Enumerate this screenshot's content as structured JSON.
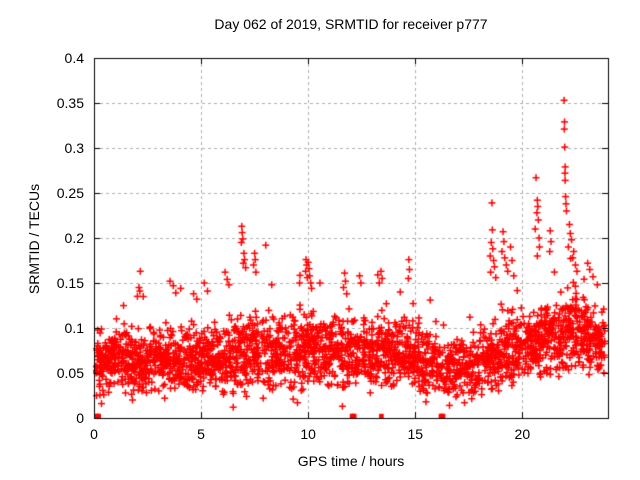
{
  "chart_data": {
    "type": "scatter",
    "title": "Day 062 of 2019, SRMTID for receiver p777",
    "xlabel": "GPS time / hours",
    "ylabel": "SRMTID / TECUs",
    "xlim": [
      0,
      24
    ],
    "ylim": [
      0,
      0.4
    ],
    "x_ticks": {
      "values": [
        0,
        5,
        10,
        15,
        20
      ],
      "labels": [
        "0",
        "5",
        "10",
        "15",
        "20"
      ]
    },
    "y_ticks": {
      "values": [
        0,
        0.05,
        0.1,
        0.15,
        0.2,
        0.25,
        0.3,
        0.35,
        0.4
      ],
      "labels": [
        "0",
        "0.05",
        "0.1",
        "0.15",
        "0.2",
        "0.25",
        "0.3",
        "0.35",
        "0.4"
      ]
    },
    "grid": true,
    "legend": false,
    "marker": {
      "shape": "plus",
      "color": "#ff0000",
      "size": 7
    },
    "frame_color": "#000000",
    "grid_color": "#b0b0b0",
    "background": "#ffffff",
    "prng_seed": 20190621,
    "distribution_bins": [
      [
        0,
        115,
        0.022,
        0.06,
        0.105
      ],
      [
        1,
        115,
        0.025,
        0.062,
        0.115
      ],
      [
        2,
        110,
        0.028,
        0.064,
        0.125
      ],
      [
        3,
        110,
        0.03,
        0.064,
        0.12
      ],
      [
        4,
        110,
        0.03,
        0.065,
        0.12
      ],
      [
        5,
        110,
        0.03,
        0.066,
        0.12
      ],
      [
        6,
        110,
        0.026,
        0.068,
        0.128
      ],
      [
        7,
        110,
        0.022,
        0.07,
        0.13
      ],
      [
        8,
        110,
        0.03,
        0.07,
        0.122
      ],
      [
        9,
        110,
        0.025,
        0.072,
        0.13
      ],
      [
        10,
        110,
        0.035,
        0.075,
        0.132
      ],
      [
        11,
        110,
        0.032,
        0.075,
        0.13
      ],
      [
        12,
        110,
        0.035,
        0.072,
        0.128
      ],
      [
        13,
        110,
        0.035,
        0.072,
        0.13
      ],
      [
        14,
        110,
        0.032,
        0.07,
        0.122
      ],
      [
        15,
        105,
        0.026,
        0.065,
        0.115
      ],
      [
        16,
        100,
        0.02,
        0.057,
        0.1
      ],
      [
        17,
        95,
        0.02,
        0.055,
        0.1
      ],
      [
        18,
        105,
        0.03,
        0.066,
        0.122
      ],
      [
        19,
        110,
        0.036,
        0.076,
        0.14
      ],
      [
        20,
        110,
        0.042,
        0.083,
        0.142
      ],
      [
        21,
        115,
        0.046,
        0.089,
        0.145
      ],
      [
        22,
        120,
        0.052,
        0.097,
        0.16
      ],
      [
        23,
        105,
        0.048,
        0.086,
        0.132
      ]
    ],
    "outliers": [
      [
        0.35,
        0.016
      ],
      [
        1.8,
        0.02
      ],
      [
        3.3,
        0.022
      ],
      [
        6.5,
        0.012
      ],
      [
        7.9,
        0.022
      ],
      [
        9.3,
        0.021
      ],
      [
        9.5,
        0.017
      ],
      [
        11.6,
        0.013
      ],
      [
        12.9,
        0.028
      ],
      [
        15.5,
        0.018
      ],
      [
        16.6,
        0.014
      ],
      [
        17.3,
        0.017
      ],
      [
        18.1,
        0.026
      ],
      [
        2.1,
        0.145
      ],
      [
        2.14,
        0.141
      ],
      [
        2.16,
        0.163
      ],
      [
        2.3,
        0.135
      ],
      [
        3.55,
        0.152
      ],
      [
        3.7,
        0.147
      ],
      [
        3.82,
        0.139
      ],
      [
        4.05,
        0.144
      ],
      [
        4.65,
        0.138
      ],
      [
        4.8,
        0.132
      ],
      [
        5.15,
        0.15
      ],
      [
        5.3,
        0.141
      ],
      [
        6.12,
        0.162
      ],
      [
        6.22,
        0.154
      ],
      [
        6.3,
        0.148
      ],
      [
        6.88,
        0.195
      ],
      [
        6.9,
        0.213
      ],
      [
        6.92,
        0.206
      ],
      [
        6.95,
        0.199
      ],
      [
        6.97,
        0.172
      ],
      [
        7.0,
        0.183
      ],
      [
        7.03,
        0.176
      ],
      [
        7.08,
        0.167
      ],
      [
        7.45,
        0.17
      ],
      [
        7.5,
        0.183
      ],
      [
        7.53,
        0.176
      ],
      [
        7.56,
        0.162
      ],
      [
        8.02,
        0.192
      ],
      [
        8.3,
        0.148
      ],
      [
        9.6,
        0.15
      ],
      [
        9.88,
        0.163
      ],
      [
        9.9,
        0.176
      ],
      [
        9.93,
        0.17
      ],
      [
        9.96,
        0.156
      ],
      [
        10.0,
        0.173
      ],
      [
        10.04,
        0.166
      ],
      [
        10.07,
        0.158
      ],
      [
        10.12,
        0.15
      ],
      [
        10.16,
        0.144
      ],
      [
        10.55,
        0.15
      ],
      [
        11.65,
        0.145
      ],
      [
        11.7,
        0.161
      ],
      [
        11.74,
        0.152
      ],
      [
        11.8,
        0.138
      ],
      [
        12.4,
        0.158
      ],
      [
        12.46,
        0.15
      ],
      [
        13.25,
        0.159
      ],
      [
        13.32,
        0.15
      ],
      [
        13.4,
        0.163
      ],
      [
        13.45,
        0.155
      ],
      [
        14.3,
        0.14
      ],
      [
        14.68,
        0.155
      ],
      [
        14.7,
        0.176
      ],
      [
        14.73,
        0.165
      ],
      [
        15.7,
        0.131
      ],
      [
        17.55,
        0.112
      ],
      [
        18.5,
        0.18
      ],
      [
        18.52,
        0.162
      ],
      [
        18.55,
        0.195
      ],
      [
        18.58,
        0.239
      ],
      [
        18.6,
        0.209
      ],
      [
        18.62,
        0.188
      ],
      [
        18.66,
        0.175
      ],
      [
        18.7,
        0.168
      ],
      [
        18.76,
        0.156
      ],
      [
        19.05,
        0.185
      ],
      [
        19.1,
        0.207
      ],
      [
        19.14,
        0.196
      ],
      [
        19.18,
        0.178
      ],
      [
        19.25,
        0.17
      ],
      [
        19.32,
        0.163
      ],
      [
        19.45,
        0.19
      ],
      [
        19.52,
        0.175
      ],
      [
        19.6,
        0.158
      ],
      [
        20.6,
        0.21
      ],
      [
        20.64,
        0.267
      ],
      [
        20.68,
        0.228
      ],
      [
        20.7,
        0.242
      ],
      [
        20.72,
        0.235
      ],
      [
        20.75,
        0.22
      ],
      [
        20.78,
        0.2
      ],
      [
        20.8,
        0.19
      ],
      [
        20.7,
        0.18
      ],
      [
        21.28,
        0.185
      ],
      [
        21.3,
        0.208
      ],
      [
        21.34,
        0.196
      ],
      [
        21.95,
        0.353
      ],
      [
        21.96,
        0.321
      ],
      [
        21.97,
        0.329
      ],
      [
        21.98,
        0.301
      ],
      [
        21.99,
        0.272
      ],
      [
        22.0,
        0.279
      ],
      [
        22.0,
        0.264
      ],
      [
        22.02,
        0.246
      ],
      [
        22.04,
        0.238
      ],
      [
        22.06,
        0.23
      ],
      [
        22.15,
        0.19
      ],
      [
        22.2,
        0.215
      ],
      [
        22.24,
        0.205
      ],
      [
        22.3,
        0.198
      ],
      [
        22.35,
        0.178
      ],
      [
        22.4,
        0.185
      ],
      [
        22.48,
        0.17
      ],
      [
        22.55,
        0.163
      ],
      [
        23.05,
        0.172
      ],
      [
        23.15,
        0.165
      ],
      [
        23.3,
        0.157
      ],
      [
        23.5,
        0.148
      ]
    ],
    "zero_points_x": [
      0.14,
      0.18,
      0.22,
      12.05,
      12.1,
      12.15,
      13.42,
      16.2,
      16.25,
      16.3
    ]
  }
}
